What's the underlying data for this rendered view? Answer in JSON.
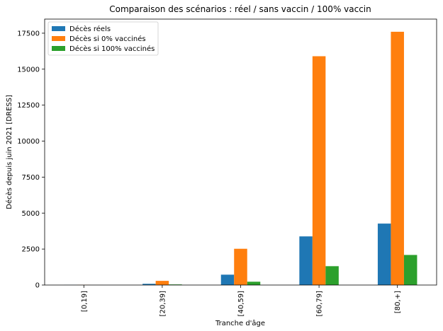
{
  "chart_data": {
    "type": "bar",
    "title": "Comparaison des scénarios : réel / sans vaccin / 100% vaccin",
    "xlabel": "Tranche d'âge",
    "ylabel": "Décès depuis juin 2021 [DRESS]",
    "categories": [
      "[0,19]",
      "[20,39]",
      "[40,59]",
      "[60,79]",
      "[80,+]"
    ],
    "series": [
      {
        "name": "Décès réels",
        "color": "#1f77b4",
        "values": [
          5,
          85,
          720,
          3380,
          4270
        ]
      },
      {
        "name": "Décès si 0% vaccinés",
        "color": "#ff7f0e",
        "values": [
          10,
          290,
          2520,
          15900,
          17600
        ]
      },
      {
        "name": "Décès si 100% vaccinés",
        "color": "#2ca02c",
        "values": [
          2,
          40,
          230,
          1310,
          2090
        ]
      }
    ],
    "ylim": [
      0,
      18480
    ],
    "yticks": [
      0,
      2500,
      5000,
      7500,
      10000,
      12500,
      15000,
      17500
    ],
    "ytick_labels": [
      "0",
      "2500",
      "5000",
      "7500",
      "10000",
      "12500",
      "15000",
      "17500"
    ],
    "legend_position": "top-left",
    "grid": false
  }
}
